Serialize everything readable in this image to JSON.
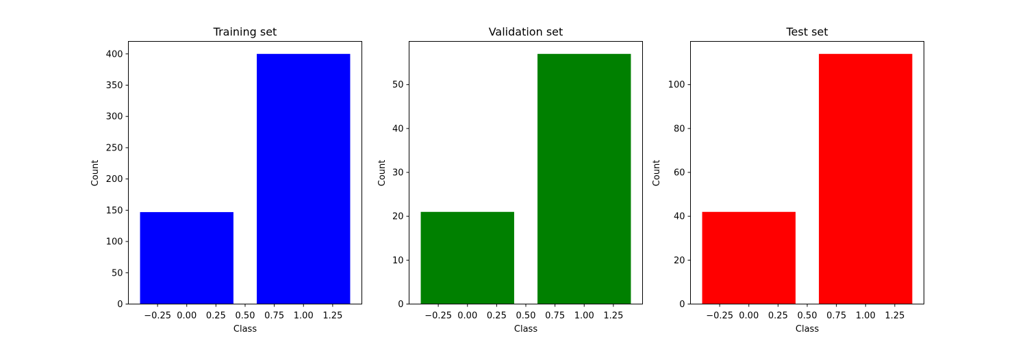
{
  "chart_data": [
    {
      "type": "bar",
      "title": "Training set",
      "xlabel": "Class",
      "ylabel": "Count",
      "color": "#0000ff",
      "categories": [
        0,
        1
      ],
      "values": [
        147,
        400
      ],
      "bar_width": 0.8,
      "xlim": [
        -0.5,
        1.5
      ],
      "ylim": [
        0,
        420
      ],
      "xticks": [
        -0.25,
        0.0,
        0.25,
        0.5,
        0.75,
        1.0,
        1.25
      ],
      "xtick_labels": [
        "−0.25",
        "0.00",
        "0.25",
        "0.50",
        "0.75",
        "1.00",
        "1.25"
      ],
      "yticks": [
        0,
        50,
        100,
        150,
        200,
        250,
        300,
        350,
        400
      ],
      "ytick_labels": [
        "0",
        "50",
        "100",
        "150",
        "200",
        "250",
        "300",
        "350",
        "400"
      ],
      "grid": false
    },
    {
      "type": "bar",
      "title": "Validation set",
      "xlabel": "Class",
      "ylabel": "Count",
      "color": "#008000",
      "categories": [
        0,
        1
      ],
      "values": [
        21,
        57
      ],
      "bar_width": 0.8,
      "xlim": [
        -0.5,
        1.5
      ],
      "ylim": [
        0,
        59.85
      ],
      "xticks": [
        -0.25,
        0.0,
        0.25,
        0.5,
        0.75,
        1.0,
        1.25
      ],
      "xtick_labels": [
        "−0.25",
        "0.00",
        "0.25",
        "0.50",
        "0.75",
        "1.00",
        "1.25"
      ],
      "yticks": [
        0,
        10,
        20,
        30,
        40,
        50
      ],
      "ytick_labels": [
        "0",
        "10",
        "20",
        "30",
        "40",
        "50"
      ],
      "grid": false
    },
    {
      "type": "bar",
      "title": "Test set",
      "xlabel": "Class",
      "ylabel": "Count",
      "color": "#ff0000",
      "categories": [
        0,
        1
      ],
      "values": [
        42,
        114
      ],
      "bar_width": 0.8,
      "xlim": [
        -0.5,
        1.5
      ],
      "ylim": [
        0,
        119.7
      ],
      "xticks": [
        -0.25,
        0.0,
        0.25,
        0.5,
        0.75,
        1.0,
        1.25
      ],
      "xtick_labels": [
        "−0.25",
        "0.00",
        "0.25",
        "0.50",
        "0.75",
        "1.00",
        "1.25"
      ],
      "yticks": [
        0,
        20,
        40,
        60,
        80,
        100
      ],
      "ytick_labels": [
        "0",
        "20",
        "40",
        "60",
        "80",
        "100"
      ],
      "grid": false
    }
  ]
}
